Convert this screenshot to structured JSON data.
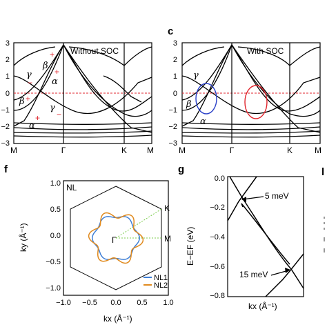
{
  "panel_letters": [
    "c",
    "f",
    "g",
    "l"
  ],
  "chart_data": [
    {
      "type": "line",
      "title": "Without SOC",
      "ylim": [
        -3,
        3
      ],
      "yticks": [
        3,
        2,
        1,
        0,
        -1,
        -2,
        -3
      ],
      "xticks": [
        "M",
        "Γ",
        "K",
        "M"
      ],
      "reference_line": {
        "y": 0,
        "style": "dashed",
        "color": "#e0242c"
      },
      "annotations": [
        {
          "text": "γ",
          "x": 0.12,
          "y": 0.9
        },
        {
          "text": "β",
          "x": 0.82,
          "y": 1.3
        },
        {
          "text": "α",
          "x": 0.6,
          "y": 0.65
        },
        {
          "text": "β",
          "x": 0.25,
          "y": -0.55
        },
        {
          "text": "γ",
          "x": 0.8,
          "y": -0.85
        },
        {
          "text": "α",
          "x": 0.38,
          "y": -1.9
        },
        {
          "text": "+",
          "x": 0.72,
          "y": 2.2,
          "color": "#e0242c"
        },
        {
          "text": "+",
          "x": 0.7,
          "y": 1.2,
          "color": "#e0242c"
        },
        {
          "text": "−",
          "x": 0.35,
          "y": 0.55,
          "color": "#e0242c"
        },
        {
          "text": "+",
          "x": 0.4,
          "y": -0.5,
          "color": "#e0242c"
        },
        {
          "text": "−",
          "x": 0.82,
          "y": -1.15,
          "color": "#e0242c"
        },
        {
          "text": "+",
          "x": 0.55,
          "y": -1.6,
          "color": "#e0242c"
        }
      ],
      "series_color": "#000000"
    },
    {
      "type": "line",
      "title": "With SOC",
      "ylim": [
        -3,
        3
      ],
      "yticks": [
        3,
        2,
        1,
        0,
        -1,
        -2,
        -3
      ],
      "xticks": [
        "M",
        "Γ",
        "K",
        "M"
      ],
      "reference_line": {
        "y": 0,
        "style": "dashed",
        "color": "#e0242c"
      },
      "annotations": [
        {
          "text": "γ",
          "x": 0.3,
          "y": 0.9
        },
        {
          "text": "β",
          "x": 0.12,
          "y": -0.65
        },
        {
          "text": "α",
          "x": 0.45,
          "y": -1.75
        }
      ],
      "highlights": [
        {
          "shape": "ellipse",
          "color": "#2a40c8",
          "cx": 0.56,
          "cy": -0.35
        },
        {
          "shape": "ellipse",
          "color": "#e0242c",
          "cx": 1.7,
          "cy": -0.55
        }
      ],
      "series_color": "#000000"
    },
    {
      "type": "line",
      "xlabel": "kx (Å⁻¹)",
      "ylabel": "ky (Å⁻¹)",
      "xlim": [
        -1.0,
        1.0
      ],
      "ylim": [
        -1.0,
        1.0
      ],
      "xticks": [
        "−1.0",
        "−0.5",
        "0.0",
        "0.5",
        "1.0"
      ],
      "yticks": [
        "1.0",
        "0.5",
        "0.0",
        "−0.5",
        "−1.0"
      ],
      "corner_label": "NL",
      "point_labels": [
        "K",
        "M",
        "Γ"
      ],
      "brillouin_zone": {
        "shape": "hexagon",
        "vertex_radius": 0.95,
        "color": "#000000"
      },
      "series": [
        {
          "name": "NL1",
          "color": "#3f7fd6",
          "r0": 0.42,
          "amp": 0.03
        },
        {
          "name": "NL2",
          "color": "#e08a1e",
          "r0": 0.45,
          "amp": 0.07
        }
      ],
      "guide_color": "#7ccd4c"
    },
    {
      "type": "line",
      "xlabel": "kx (Å⁻¹)",
      "ylabel": "E−EF (eV)",
      "ylim": [
        -0.8,
        0.0
      ],
      "yticks": [
        "0.0",
        "−0.2",
        "−0.4",
        "−0.6",
        "−0.8"
      ],
      "annotations": [
        {
          "text": "5 meV",
          "x": 0.35,
          "y": -0.13
        },
        {
          "text": "15 meV",
          "x": 0.28,
          "y": -0.67
        }
      ],
      "series_color": "#000000"
    }
  ]
}
